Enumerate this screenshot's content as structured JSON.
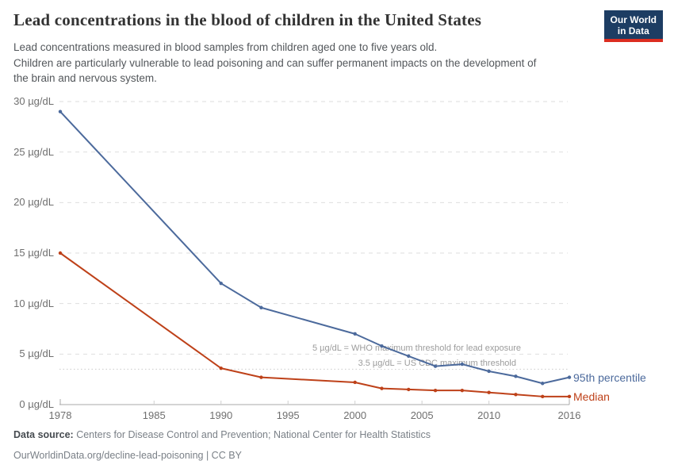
{
  "header": {
    "subtitle_lines": [
      "Lead concentrations measured in blood samples from children aged one to five years old.",
      "Children are particularly vulnerable to lead poisoning and can suffer permanent impacts on the development of",
      "the brain and nervous system."
    ],
    "logo": {
      "line1": "Our World",
      "line2": "in Data",
      "bg_color": "#1d3d63",
      "stripe_color": "#dc2d20"
    }
  },
  "chart_data": {
    "type": "line",
    "title": "Lead concentrations in the blood of children in the United States",
    "x": [
      1978,
      1990,
      1993,
      2000,
      2002,
      2004,
      2006,
      2008,
      2010,
      2012,
      2014,
      2016
    ],
    "series": [
      {
        "name": "95th percentile",
        "color": "#4c6a9c",
        "values": [
          29,
          12,
          9.6,
          7,
          5.8,
          4.8,
          3.8,
          4,
          3.3,
          2.8,
          2.1,
          2.7
        ]
      },
      {
        "name": "Median",
        "color": "#be4119",
        "values": [
          15,
          3.6,
          2.7,
          2.2,
          1.6,
          1.5,
          1.4,
          1.4,
          1.2,
          1,
          0.8,
          0.8
        ]
      }
    ],
    "xlim": [
      1978,
      2016
    ],
    "ylim": [
      0,
      30
    ],
    "x_ticks": [
      1978,
      1985,
      1990,
      1995,
      2000,
      2005,
      2010,
      2016
    ],
    "y_ticks": [
      0,
      5,
      10,
      15,
      20,
      25,
      30
    ],
    "y_tick_suffix": " µg/dL",
    "grid": "horizontal-dashed",
    "legend_position": "line-end-labels",
    "annotations": [
      {
        "value": 5,
        "label": "5 µg/dL = WHO maximum threshold for lead exposure",
        "line_style": "dashed-gridline"
      },
      {
        "value": 3.5,
        "label": "3.5 µg/dL = US CDC maximum threshold",
        "line_style": "dotted"
      }
    ]
  },
  "footer": {
    "data_source_label": "Data source:",
    "data_source_text": " Centers for Disease Control and Prevention; National Center for Health Statistics",
    "link_line": "OurWorldinData.org/decline-lead-poisoning | CC BY"
  }
}
